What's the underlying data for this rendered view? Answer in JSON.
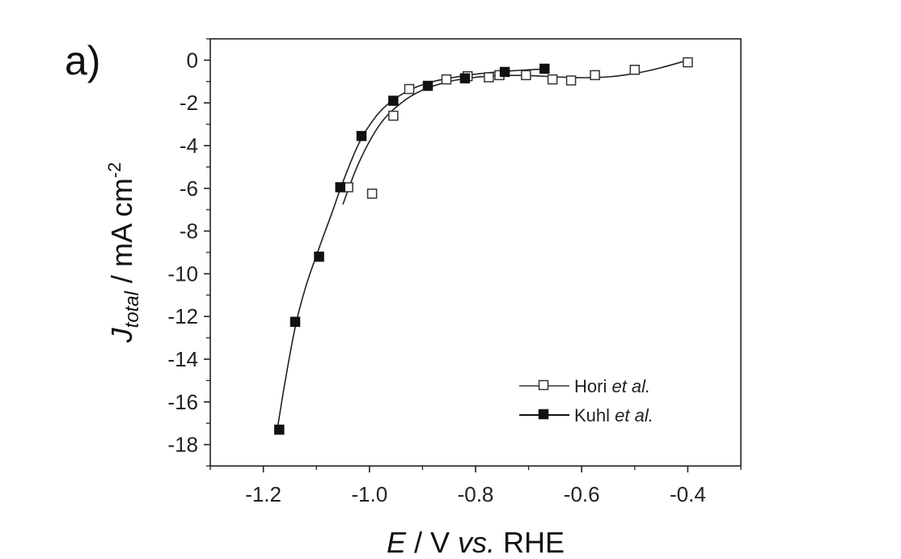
{
  "panel_label": "a)",
  "chart_data": {
    "type": "scatter",
    "xlabel": {
      "italic": "E",
      "rest": " / V ",
      "italic2": "vs.",
      "rest2": " RHE"
    },
    "ylabel": {
      "italic": "J",
      "sub": "total",
      "rest": " / mA cm",
      "sup": "-2"
    },
    "xlim": [
      -1.3,
      -0.3
    ],
    "ylim": [
      -19,
      1
    ],
    "x_ticks": [
      -1.2,
      -1.0,
      -0.8,
      -0.6,
      -0.4
    ],
    "x_tick_labels": [
      "-1.2",
      "-1.0",
      "-0.8",
      "-0.6",
      "-0.4"
    ],
    "y_ticks": [
      0,
      -2,
      -4,
      -6,
      -8,
      -10,
      -12,
      -14,
      -16,
      -18
    ],
    "y_tick_labels": [
      "0",
      "-2",
      "-4",
      "-6",
      "-8",
      "-10",
      "-12",
      "-14",
      "-16",
      "-18"
    ],
    "grid": false,
    "legend_position": "bottom-right",
    "series": [
      {
        "name": "Hori et al.",
        "name_plain": "Hori ",
        "name_italic": "et al.",
        "marker": "open-square",
        "color": "#333333",
        "points": [
          {
            "x": -1.04,
            "y": -5.95
          },
          {
            "x": -0.995,
            "y": -6.25
          },
          {
            "x": -0.955,
            "y": -2.6
          },
          {
            "x": -0.925,
            "y": -1.35
          },
          {
            "x": -0.855,
            "y": -0.9
          },
          {
            "x": -0.815,
            "y": -0.75
          },
          {
            "x": -0.775,
            "y": -0.8
          },
          {
            "x": -0.755,
            "y": -0.7
          },
          {
            "x": -0.705,
            "y": -0.7
          },
          {
            "x": -0.655,
            "y": -0.9
          },
          {
            "x": -0.62,
            "y": -0.95
          },
          {
            "x": -0.575,
            "y": -0.7
          },
          {
            "x": -0.5,
            "y": -0.45
          },
          {
            "x": -0.4,
            "y": -0.1
          }
        ],
        "fit": [
          {
            "x": -1.05,
            "y": -6.75
          },
          {
            "x": -1.02,
            "y": -4.8
          },
          {
            "x": -0.98,
            "y": -3.0
          },
          {
            "x": -0.94,
            "y": -2.0
          },
          {
            "x": -0.9,
            "y": -1.4
          },
          {
            "x": -0.85,
            "y": -1.0
          },
          {
            "x": -0.8,
            "y": -0.8
          },
          {
            "x": -0.75,
            "y": -0.72
          },
          {
            "x": -0.7,
            "y": -0.72
          },
          {
            "x": -0.65,
            "y": -0.78
          },
          {
            "x": -0.6,
            "y": -0.82
          },
          {
            "x": -0.55,
            "y": -0.78
          },
          {
            "x": -0.5,
            "y": -0.62
          },
          {
            "x": -0.45,
            "y": -0.35
          },
          {
            "x": -0.4,
            "y": 0.0
          }
        ]
      },
      {
        "name": "Kuhl et al.",
        "name_plain": "Kuhl ",
        "name_italic": "et al.",
        "marker": "filled-square",
        "color": "#111111",
        "points": [
          {
            "x": -1.17,
            "y": -17.3
          },
          {
            "x": -1.14,
            "y": -12.25
          },
          {
            "x": -1.095,
            "y": -9.2
          },
          {
            "x": -1.055,
            "y": -5.95
          },
          {
            "x": -1.015,
            "y": -3.55
          },
          {
            "x": -0.955,
            "y": -1.9
          },
          {
            "x": -0.89,
            "y": -1.2
          },
          {
            "x": -0.82,
            "y": -0.85
          },
          {
            "x": -0.745,
            "y": -0.55
          },
          {
            "x": -0.67,
            "y": -0.4
          }
        ],
        "fit": [
          {
            "x": -1.175,
            "y": -17.5
          },
          {
            "x": -1.16,
            "y": -15.2
          },
          {
            "x": -1.14,
            "y": -12.5
          },
          {
            "x": -1.12,
            "y": -10.6
          },
          {
            "x": -1.095,
            "y": -8.8
          },
          {
            "x": -1.07,
            "y": -7.1
          },
          {
            "x": -1.05,
            "y": -5.7
          },
          {
            "x": -1.02,
            "y": -3.9
          },
          {
            "x": -0.99,
            "y": -2.7
          },
          {
            "x": -0.96,
            "y": -1.95
          },
          {
            "x": -0.92,
            "y": -1.35
          },
          {
            "x": -0.88,
            "y": -1.0
          },
          {
            "x": -0.82,
            "y": -0.72
          },
          {
            "x": -0.76,
            "y": -0.55
          },
          {
            "x": -0.7,
            "y": -0.45
          },
          {
            "x": -0.67,
            "y": -0.42
          }
        ]
      }
    ]
  }
}
